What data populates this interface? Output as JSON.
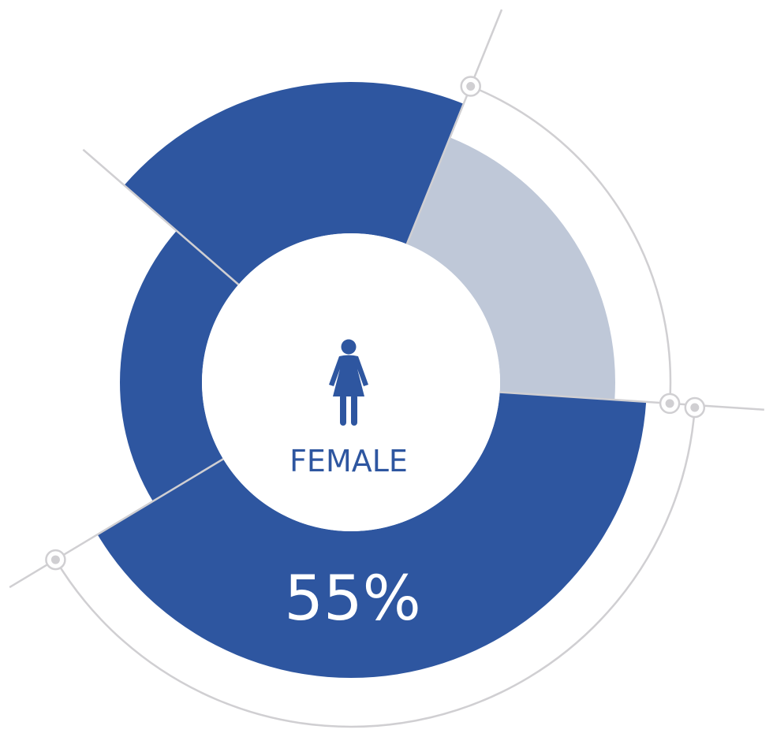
{
  "center_label": "FEMALE",
  "segment_label": "55%"
}
